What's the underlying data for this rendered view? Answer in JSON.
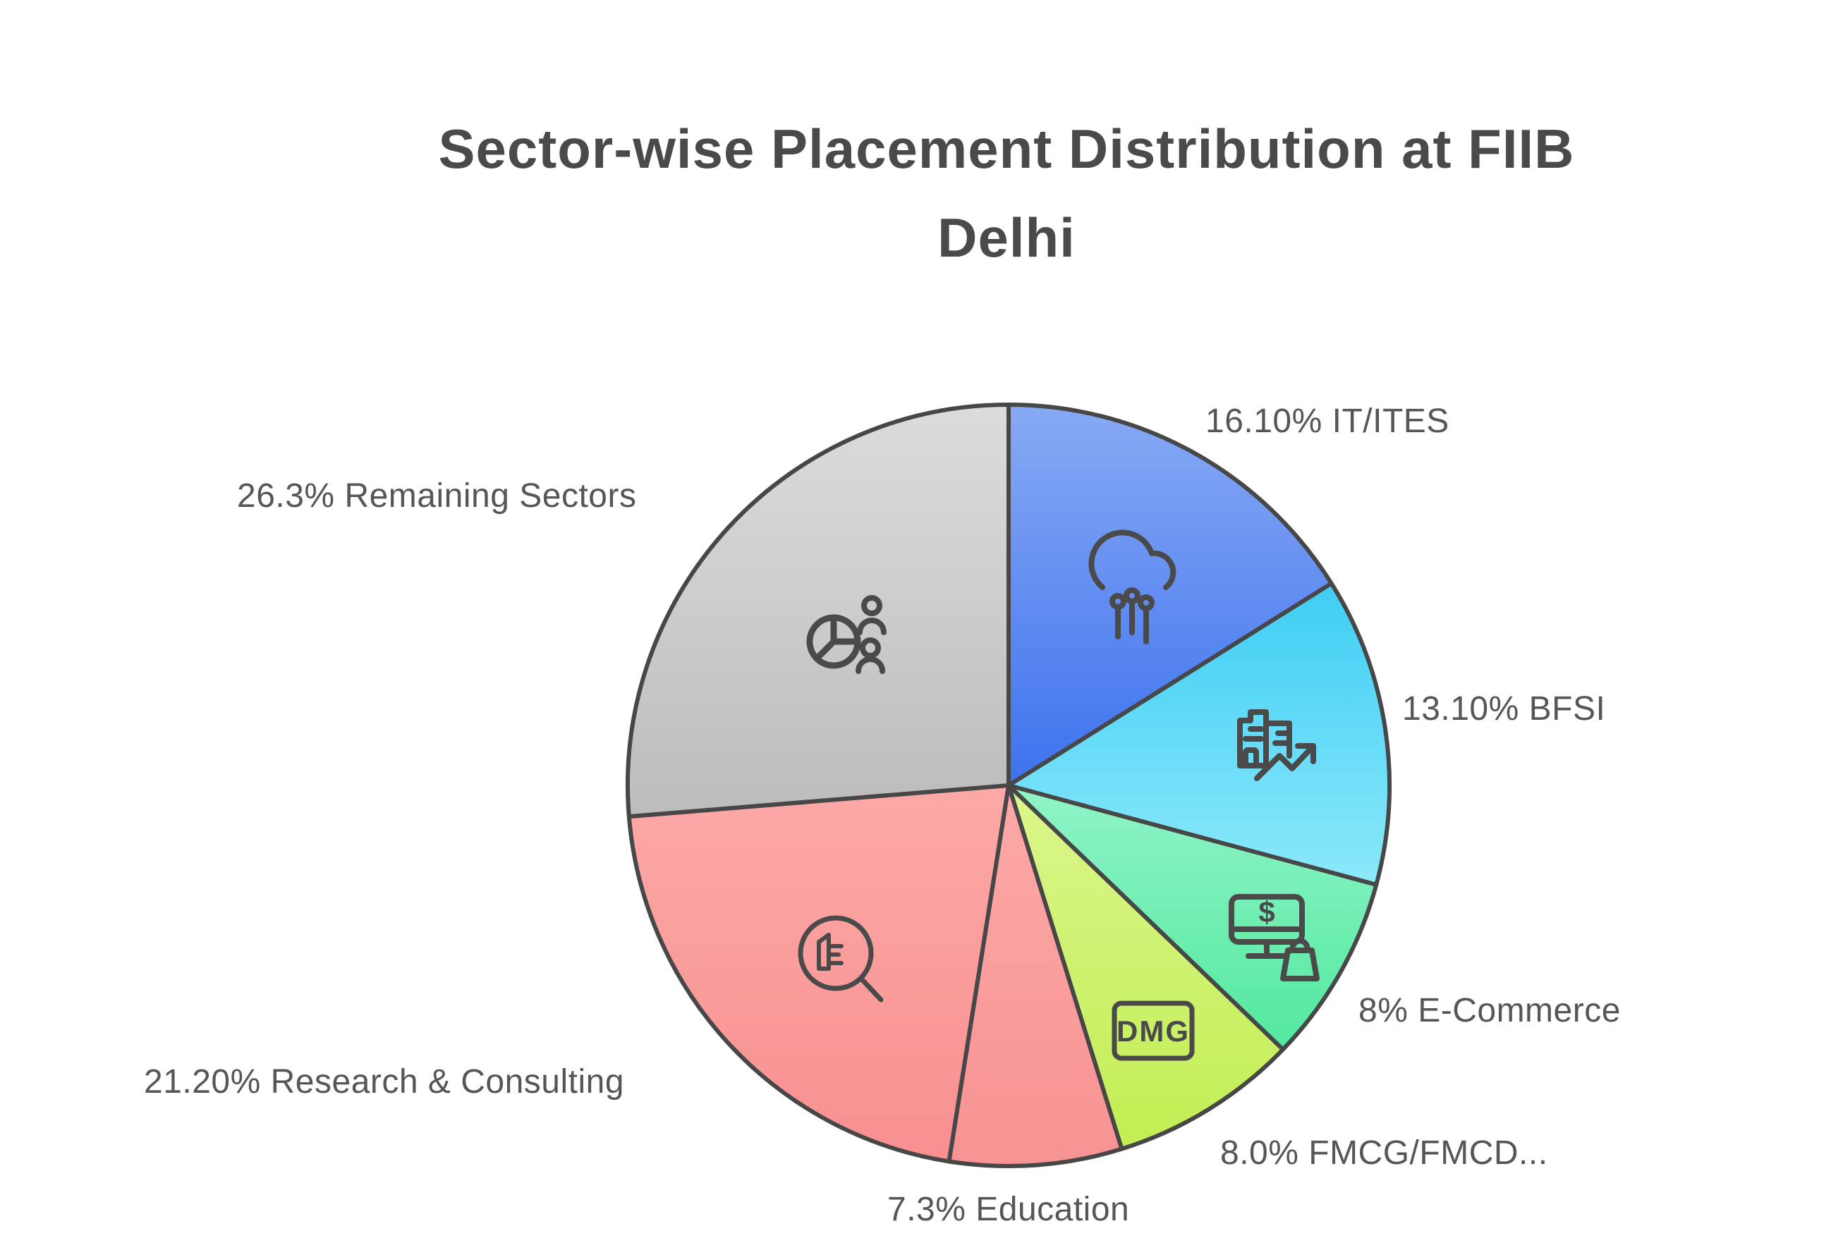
{
  "title": {
    "line1": "Sector-wise Placement Distribution at FIIB",
    "line2": "Delhi"
  },
  "colors": {
    "background": "#ffffff",
    "title_text": "#4a4a4a",
    "label_text": "#565656",
    "slice_outline": "#474747",
    "icon_stroke": "#4a4a4a"
  },
  "chart_data": {
    "type": "pie",
    "title": "Sector-wise Placement Distribution at FIIB Delhi",
    "start_angle_deg": 0,
    "direction": "clockwise",
    "legend": "none",
    "slices": [
      {
        "label": "IT/ITES",
        "value": 16.1,
        "callout": "16.10% IT/ITES",
        "color_top": "#88aaf4",
        "color_bottom": "#3d72ee",
        "icon": "cloud-computing-icon"
      },
      {
        "label": "BFSI",
        "value": 13.1,
        "callout": "13.10% BFSI",
        "color_top": "#3ecdf4",
        "color_bottom": "#8ce9fa",
        "icon": "building-growth-icon"
      },
      {
        "label": "E-Commerce",
        "value": 8.0,
        "callout": "8% E-Commerce",
        "color_top": "#90f4c8",
        "color_bottom": "#52e89e",
        "icon": "monitor-shopping-bag-icon",
        "icon_glyph": "$"
      },
      {
        "label": "FMCG/FMCD",
        "value": 8.0,
        "callout": "8.0% FMCG/FMCD...",
        "color_top": "#dbf68c",
        "color_bottom": "#c2ee52",
        "icon": "dmg-badge-icon",
        "badge": "DMG"
      },
      {
        "label": "Education",
        "value": 7.3,
        "callout": "7.3% Education",
        "color_top": "#fca9a7",
        "color_bottom": "#f89393",
        "icon": null
      },
      {
        "label": "Research & Consulting",
        "value": 21.2,
        "callout": "21.20% Research & Consulting",
        "color_top": "#fca9a7",
        "color_bottom": "#f89090",
        "icon": "magnifier-report-icon"
      },
      {
        "label": "Remaining Sectors",
        "value": 26.3,
        "callout": "26.3% Remaining Sectors",
        "color_top": "#dcdcdc",
        "color_bottom": "#bcbcbc",
        "icon": "pie-with-people-icon"
      }
    ]
  }
}
